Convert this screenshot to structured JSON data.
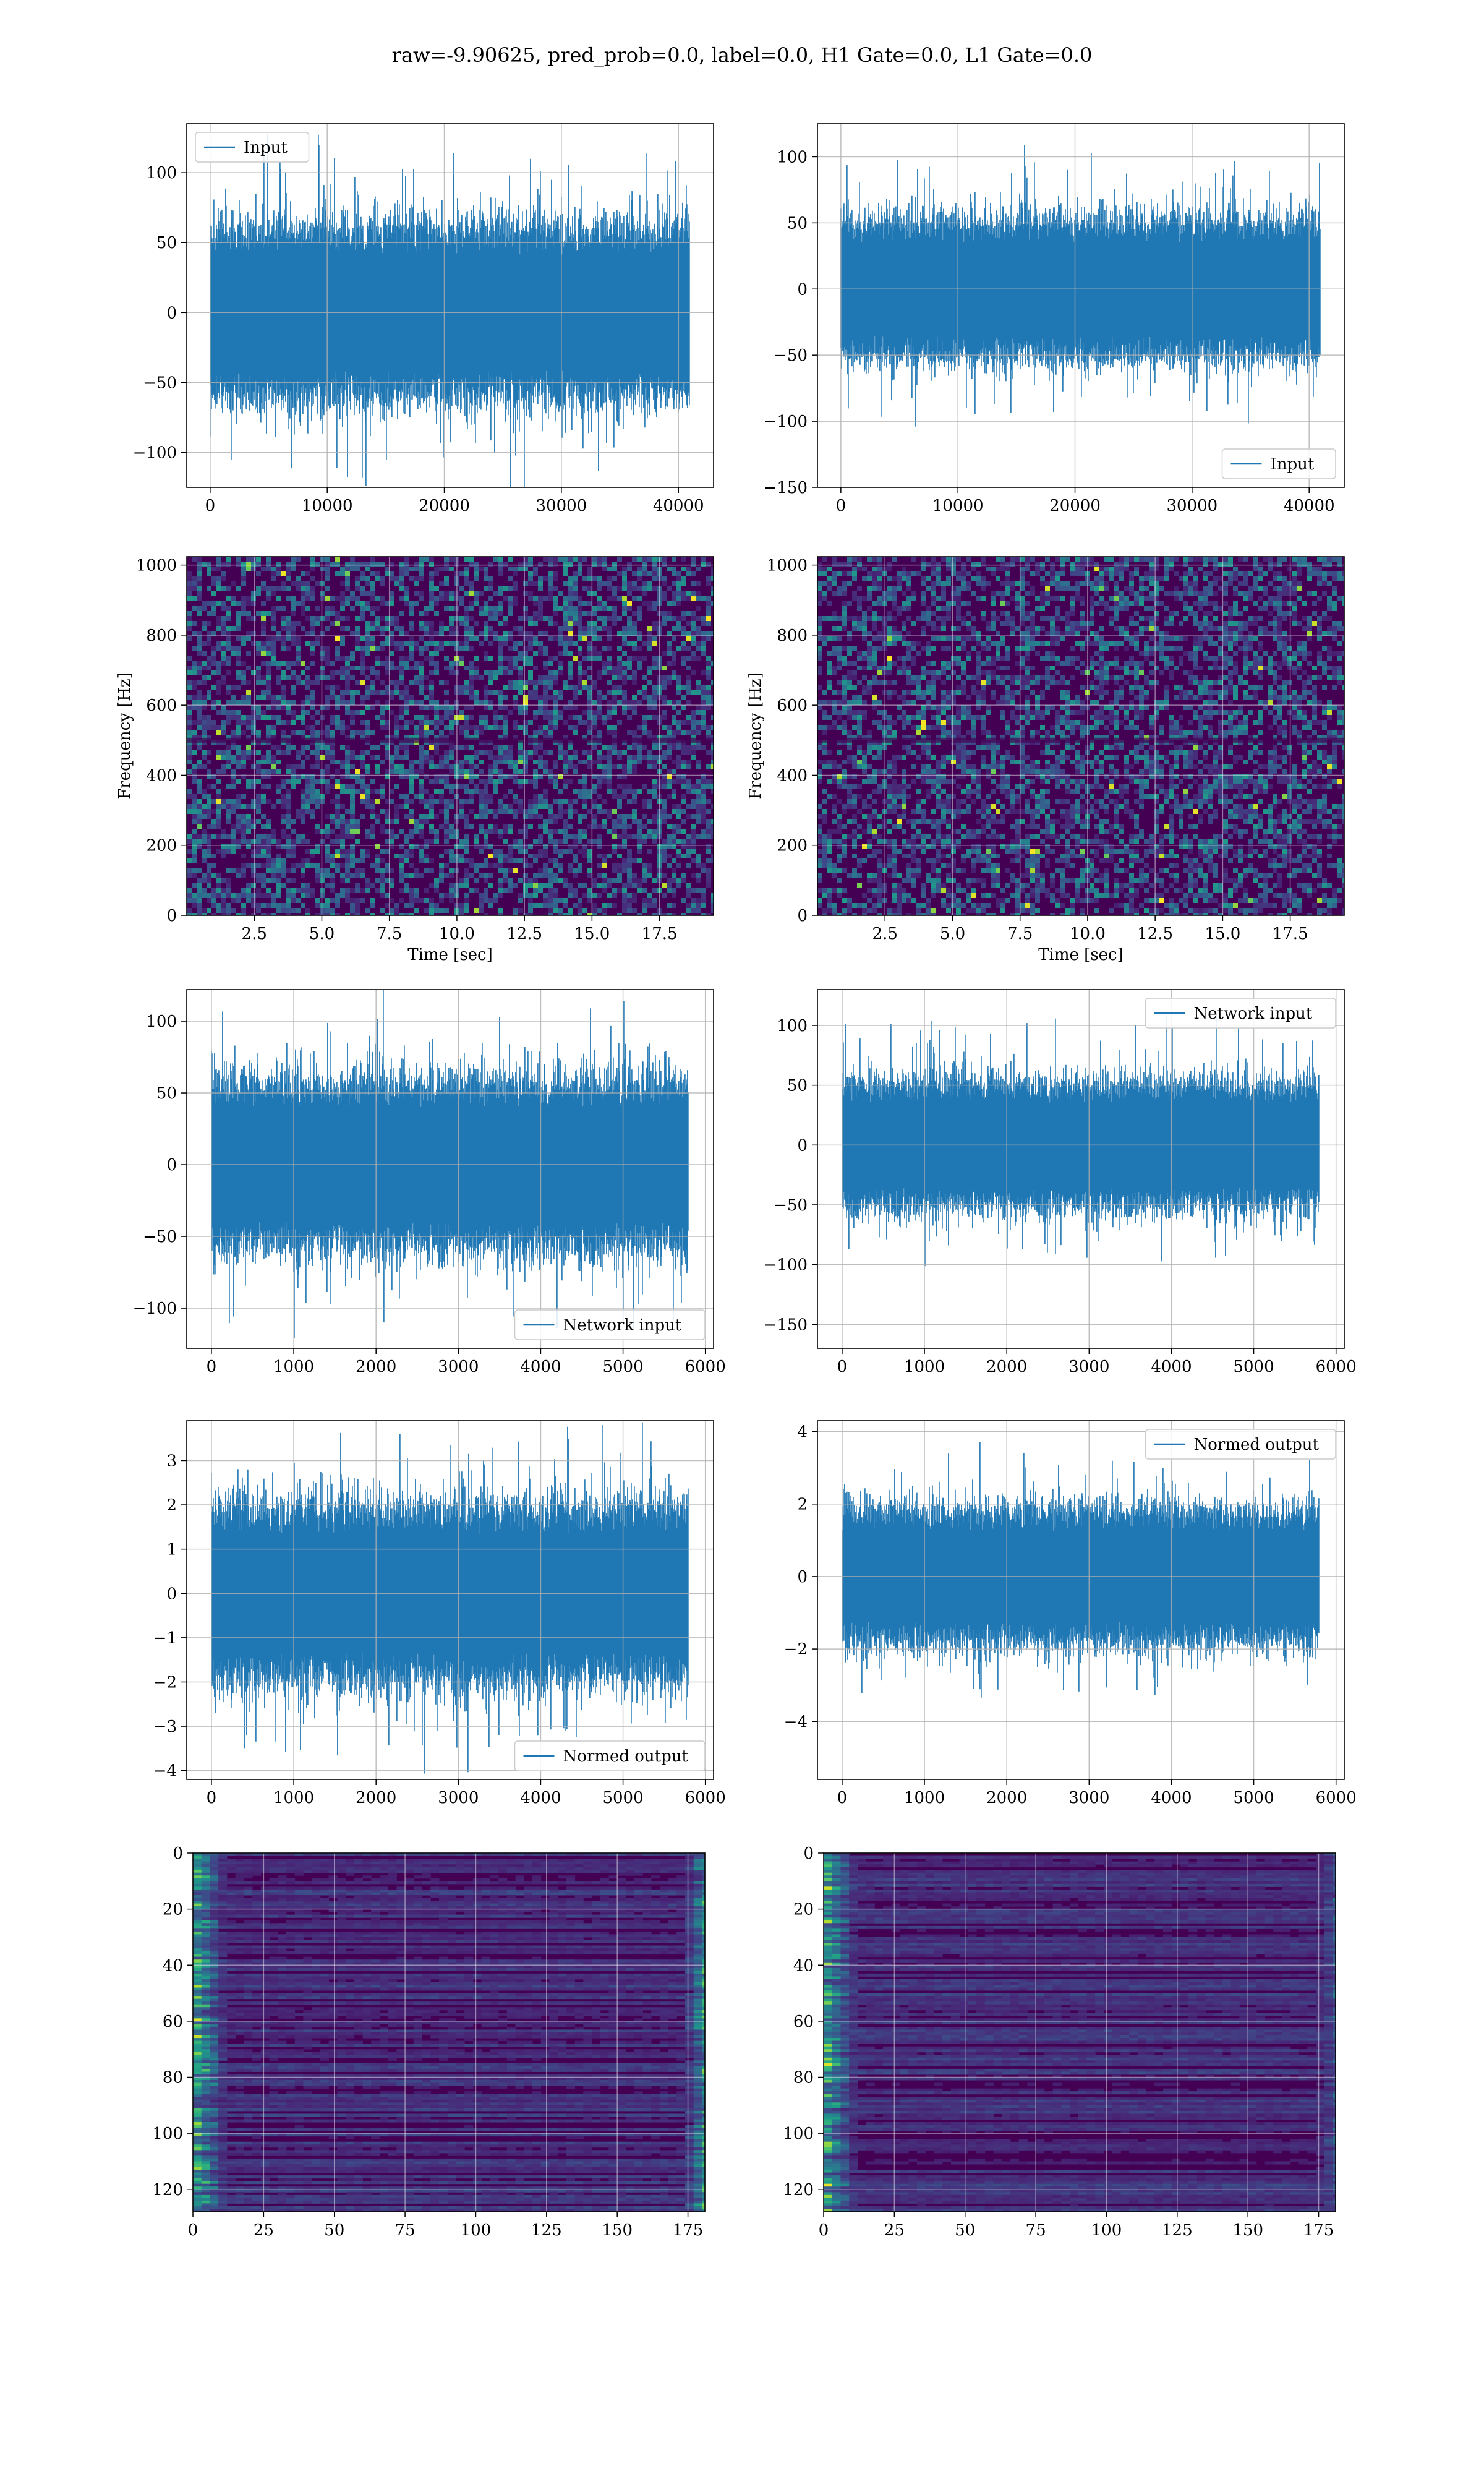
{
  "figure": {
    "title": "raw=-9.90625, pred_prob=0.0, label=0.0, H1 Gate=0.0, L1 Gate=0.0"
  },
  "colors": {
    "line": "#1f77b4",
    "grid": "#b0b0b0",
    "viridis_dark": "#440154",
    "viridis_mid": "#21918c",
    "viridis_bright": "#fde725"
  },
  "chart_data": [
    {
      "id": "input-h1",
      "type": "line",
      "panel": "row1-left",
      "series": [
        {
          "name": "Input",
          "signal": "noise",
          "length": 40960,
          "spread": 100
        }
      ],
      "xlim": [
        -2000,
        43000
      ],
      "ylim": [
        -125,
        135
      ],
      "xticks": [
        0,
        10000,
        20000,
        30000,
        40000
      ],
      "yticks": [
        -100,
        -50,
        0,
        50,
        100
      ],
      "legend": "upper-left",
      "grid": true,
      "xlabel": "",
      "ylabel": ""
    },
    {
      "id": "input-l1",
      "type": "line",
      "panel": "row1-right",
      "series": [
        {
          "name": "Input",
          "signal": "noise",
          "length": 40960,
          "spread": 85
        }
      ],
      "xlim": [
        -2000,
        43000
      ],
      "ylim": [
        -150,
        125
      ],
      "xticks": [
        0,
        10000,
        20000,
        30000,
        40000
      ],
      "yticks": [
        -150,
        -100,
        -50,
        0,
        50,
        100
      ],
      "legend": "lower-right",
      "grid": true,
      "xlabel": "",
      "ylabel": ""
    },
    {
      "id": "spectrogram-h1",
      "type": "heatmap",
      "panel": "row2-left",
      "xlim": [
        0,
        19.5
      ],
      "ylim": [
        0,
        1024
      ],
      "xticks": [
        2.5,
        5.0,
        7.5,
        10.0,
        12.5,
        15.0,
        17.5
      ],
      "xtick_labels": [
        "2.5",
        "5.0",
        "7.5",
        "10.0",
        "12.5",
        "15.0",
        "17.5"
      ],
      "yticks": [
        0,
        200,
        400,
        600,
        800,
        1000
      ],
      "colormap": "viridis",
      "grid": true,
      "xlabel": "Time [sec]",
      "ylabel": "Frequency [Hz]"
    },
    {
      "id": "spectrogram-l1",
      "type": "heatmap",
      "panel": "row2-right",
      "xlim": [
        0,
        19.5
      ],
      "ylim": [
        0,
        1024
      ],
      "xticks": [
        2.5,
        5.0,
        7.5,
        10.0,
        12.5,
        15.0,
        17.5
      ],
      "xtick_labels": [
        "2.5",
        "5.0",
        "7.5",
        "10.0",
        "12.5",
        "15.0",
        "17.5"
      ],
      "yticks": [
        0,
        200,
        400,
        600,
        800,
        1000
      ],
      "colormap": "viridis",
      "grid": true,
      "xlabel": "Time [sec]",
      "ylabel": "Frequency [Hz]"
    },
    {
      "id": "network-input-h1",
      "type": "line",
      "panel": "row3-left",
      "series": [
        {
          "name": "Network input",
          "signal": "noise",
          "length": 5800,
          "spread": 95
        }
      ],
      "xlim": [
        -300,
        6100
      ],
      "ylim": [
        -128,
        122
      ],
      "xticks": [
        0,
        1000,
        2000,
        3000,
        4000,
        5000,
        6000
      ],
      "yticks": [
        -100,
        -50,
        0,
        50,
        100
      ],
      "legend": "lower-right",
      "grid": true,
      "xlabel": "",
      "ylabel": ""
    },
    {
      "id": "network-input-l1",
      "type": "line",
      "panel": "row3-right",
      "series": [
        {
          "name": "Network input",
          "signal": "noise",
          "length": 5800,
          "spread": 85
        }
      ],
      "xlim": [
        -300,
        6100
      ],
      "ylim": [
        -170,
        130
      ],
      "xticks": [
        0,
        1000,
        2000,
        3000,
        4000,
        5000,
        6000
      ],
      "yticks": [
        -150,
        -100,
        -50,
        0,
        50,
        100
      ],
      "legend": "upper-right",
      "grid": true,
      "xlabel": "",
      "ylabel": ""
    },
    {
      "id": "normed-output-h1",
      "type": "line",
      "panel": "row4-left",
      "series": [
        {
          "name": "Normed output",
          "signal": "noise",
          "length": 5800,
          "spread": 3.2
        }
      ],
      "xlim": [
        -300,
        6100
      ],
      "ylim": [
        -4.2,
        3.9
      ],
      "xticks": [
        0,
        1000,
        2000,
        3000,
        4000,
        5000,
        6000
      ],
      "yticks": [
        -4,
        -3,
        -2,
        -1,
        0,
        1,
        2,
        3
      ],
      "legend": "lower-right",
      "grid": true,
      "xlabel": "",
      "ylabel": ""
    },
    {
      "id": "normed-output-l1",
      "type": "line",
      "panel": "row4-right",
      "series": [
        {
          "name": "Normed output",
          "signal": "noise",
          "length": 5800,
          "spread": 3.0
        }
      ],
      "xlim": [
        -300,
        6100
      ],
      "ylim": [
        -5.6,
        4.3
      ],
      "xticks": [
        0,
        1000,
        2000,
        3000,
        4000,
        5000,
        6000
      ],
      "yticks": [
        -4,
        -2,
        0,
        2,
        4
      ],
      "legend": "upper-right",
      "grid": true,
      "xlabel": "",
      "ylabel": ""
    },
    {
      "id": "feature-map-h1",
      "type": "heatmap",
      "panel": "row5-left",
      "xlim": [
        0,
        181
      ],
      "ylim": [
        128,
        0
      ],
      "xticks": [
        0,
        25,
        50,
        75,
        100,
        125,
        150,
        175
      ],
      "yticks": [
        0,
        20,
        40,
        60,
        80,
        100,
        120
      ],
      "colormap": "viridis",
      "grid": true,
      "xlabel": "",
      "ylabel": ""
    },
    {
      "id": "feature-map-l1",
      "type": "heatmap",
      "panel": "row5-right",
      "xlim": [
        0,
        181
      ],
      "ylim": [
        128,
        0
      ],
      "xticks": [
        0,
        25,
        50,
        75,
        100,
        125,
        150,
        175
      ],
      "yticks": [
        0,
        20,
        40,
        60,
        80,
        100,
        120
      ],
      "colormap": "viridis",
      "grid": true,
      "xlabel": "",
      "ylabel": ""
    }
  ]
}
